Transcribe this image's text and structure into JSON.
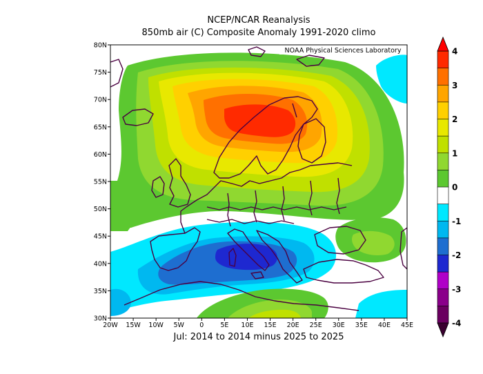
{
  "header": {
    "title": "NCEP/NCAR Reanalysis",
    "subtitle": "850mb air (C) Composite Anomaly 1991-2020 climo"
  },
  "footer": {
    "period": "Jul: 2014 to 2014 minus 2025 to 2025"
  },
  "map": {
    "credit": "NOAA Physical Sciences Laboratory",
    "lon_labels": [
      "20W",
      "15W",
      "10W",
      "5W",
      "0",
      "5E",
      "10E",
      "15E",
      "20E",
      "25E",
      "30E",
      "35E",
      "40E",
      "45E"
    ],
    "lat_labels": [
      "30N",
      "35N",
      "40N",
      "45N",
      "50N",
      "55N",
      "60N",
      "65N",
      "70N",
      "75N",
      "80N"
    ],
    "extent": {
      "lon": [
        -20,
        45
      ],
      "lat": [
        30,
        80
      ]
    },
    "anomaly_centers": [
      {
        "name": "warm",
        "lon": 10,
        "lat": 66,
        "value": 3.5
      },
      {
        "name": "cool",
        "lon": 8,
        "lat": 41,
        "value": -2.2
      }
    ]
  },
  "colorbar": {
    "ticks": [
      "4",
      "3",
      "2",
      "1",
      "0",
      "-1",
      "-2",
      "-3",
      "-4"
    ],
    "colors": [
      "#ff2a00",
      "#ff7000",
      "#ffa500",
      "#ffd000",
      "#e8e800",
      "#c0e000",
      "#90d830",
      "#5cc830",
      "#ffffff",
      "#00e8ff",
      "#00b8f0",
      "#1e6ed0",
      "#1e28d0",
      "#b000c8",
      "#8a008a",
      "#6a0060"
    ]
  }
}
